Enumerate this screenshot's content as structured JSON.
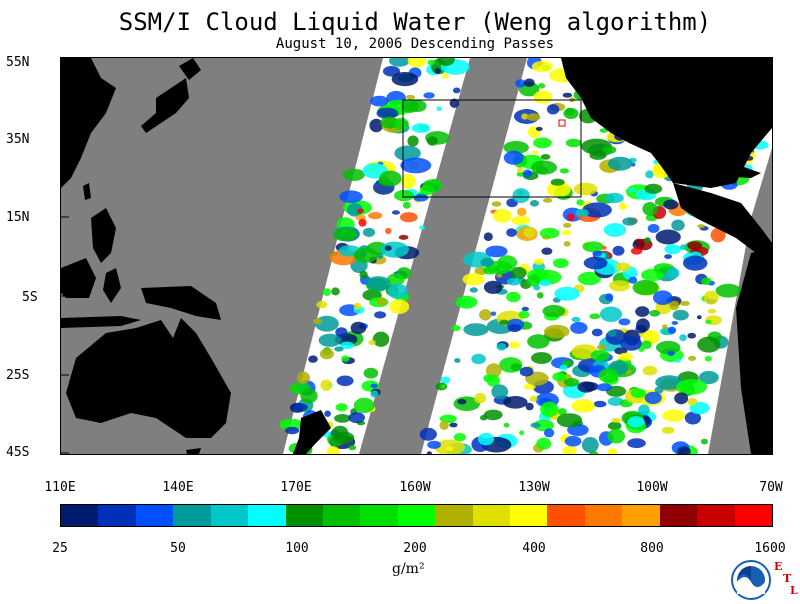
{
  "title": "SSM/I Cloud Liquid Water (Weng algorithm)",
  "subtitle": "August 10, 2006  Descending Passes",
  "lat_labels": [
    "55N",
    "35N",
    "15N",
    "5S",
    "25S",
    "45S"
  ],
  "lon_labels": [
    "110E",
    "140E",
    "170E",
    "160W",
    "130W",
    "100W",
    "70W"
  ],
  "colorbar": {
    "colors": [
      "#001a6e",
      "#0030b8",
      "#0050ff",
      "#009a9a",
      "#00c8c8",
      "#00ffff",
      "#009000",
      "#00c000",
      "#00e000",
      "#00ff00",
      "#b0b000",
      "#e0e000",
      "#ffff00",
      "#ff5000",
      "#ff7800",
      "#ffa000",
      "#900000",
      "#c80000",
      "#ff0000"
    ],
    "tick_labels": [
      "25",
      "50",
      "100",
      "200",
      "400",
      "800",
      "1600"
    ],
    "units": "g/m²"
  },
  "map_colors": {
    "land": "#000000",
    "no_data": "#7f7f7f",
    "ocean_clear": "#ffffff"
  },
  "logo": {
    "name": "NOAA",
    "etl_letters": [
      "E",
      "T",
      "L"
    ]
  }
}
